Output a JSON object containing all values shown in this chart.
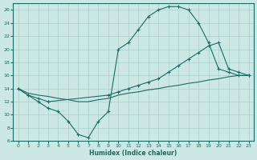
{
  "xlabel": "Humidex (Indice chaleur)",
  "xlim": [
    -0.5,
    23.5
  ],
  "ylim": [
    6,
    27
  ],
  "yticks": [
    6,
    8,
    10,
    12,
    14,
    16,
    18,
    20,
    22,
    24,
    26
  ],
  "xticks": [
    0,
    1,
    2,
    3,
    4,
    5,
    6,
    7,
    8,
    9,
    10,
    11,
    12,
    13,
    14,
    15,
    16,
    17,
    18,
    19,
    20,
    21,
    22,
    23
  ],
  "bg_color": "#cce8e4",
  "grid_color": "#aacfcc",
  "line_color": "#1a6b62",
  "line1_x": [
    0,
    1,
    2,
    3,
    4,
    5,
    6,
    7,
    8,
    9,
    10,
    11,
    12,
    13,
    14,
    15,
    16,
    17,
    18,
    19,
    20,
    21,
    22,
    23
  ],
  "line1_y": [
    14,
    13,
    12,
    11,
    10.5,
    9.0,
    7.0,
    6.5,
    9.0,
    10.5,
    20.0,
    21.0,
    23.0,
    25.0,
    26.0,
    26.5,
    26.5,
    26.0,
    24.0,
    21.0,
    17.0,
    16.5,
    16.0,
    16.0
  ],
  "line2_x": [
    0,
    1,
    2,
    3,
    9,
    10,
    11,
    12,
    13,
    14,
    15,
    16,
    17,
    18,
    19,
    20,
    21,
    22,
    23
  ],
  "line2_y": [
    14,
    13.0,
    12.5,
    12.0,
    13.0,
    13.5,
    14.0,
    14.5,
    15.0,
    15.5,
    16.5,
    17.5,
    18.5,
    19.5,
    20.5,
    21.0,
    17.0,
    16.5,
    16.0
  ],
  "line3_x": [
    0,
    1,
    2,
    3,
    4,
    5,
    6,
    7,
    8,
    9,
    10,
    11,
    12,
    13,
    14,
    15,
    16,
    17,
    18,
    19,
    20,
    21,
    22,
    23
  ],
  "line3_y": [
    14,
    13.3,
    13.0,
    12.8,
    12.5,
    12.3,
    12.0,
    12.0,
    12.3,
    12.5,
    13.0,
    13.3,
    13.5,
    13.8,
    14.0,
    14.3,
    14.5,
    14.8,
    15.0,
    15.3,
    15.5,
    15.8,
    16.0,
    16.0
  ]
}
